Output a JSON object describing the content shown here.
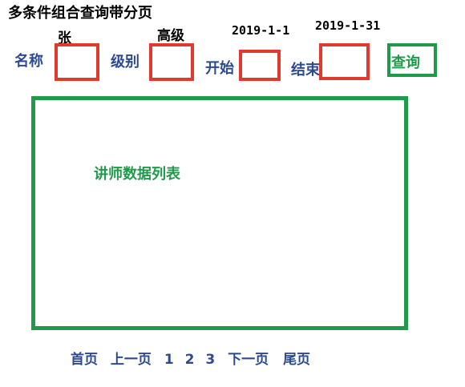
{
  "title": "多条件组合查询带分页",
  "filters": {
    "name": {
      "label": "名称",
      "sample": "张"
    },
    "level": {
      "label": "级别",
      "sample": "高级"
    },
    "start": {
      "label": "开始",
      "sample": "2019-1-1"
    },
    "end": {
      "label": "结束",
      "sample": "2019-1-31"
    }
  },
  "query_button": "查询",
  "data_list_label": "讲师数据列表",
  "pagination": {
    "first": "首页",
    "prev": "上一页",
    "pages": [
      "1",
      "2",
      "3"
    ],
    "next": "下一页",
    "last": "尾页"
  },
  "colors": {
    "input_box_border": "#e03a2e",
    "green_accent": "#1f9a4a",
    "blue_text": "#2e4a8f"
  }
}
